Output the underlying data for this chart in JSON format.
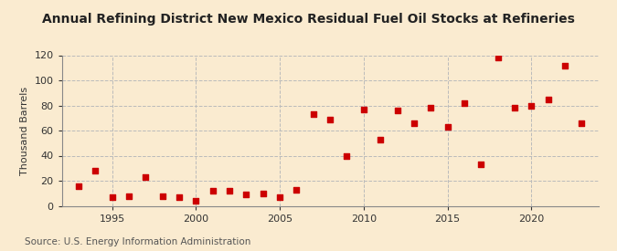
{
  "title": "Annual Refining District New Mexico Residual Fuel Oil Stocks at Refineries",
  "ylabel": "Thousand Barrels",
  "source": "Source: U.S. Energy Information Administration",
  "background_color": "#faebd0",
  "plot_bg_color": "#faebd0",
  "grid_color": "#bbbbbb",
  "marker_color": "#cc0000",
  "years": [
    1993,
    1994,
    1995,
    1996,
    1997,
    1998,
    1999,
    2000,
    2001,
    2002,
    2003,
    2004,
    2005,
    2006,
    2007,
    2008,
    2009,
    2010,
    2011,
    2012,
    2013,
    2014,
    2015,
    2016,
    2017,
    2018,
    2019,
    2020,
    2021,
    2022,
    2023
  ],
  "values": [
    16,
    28,
    7,
    8,
    23,
    8,
    7,
    4,
    12,
    12,
    9,
    10,
    7,
    13,
    73,
    69,
    40,
    77,
    53,
    76,
    66,
    78,
    63,
    82,
    33,
    118,
    78,
    80,
    85,
    112,
    66
  ],
  "xlim": [
    1992,
    2024
  ],
  "ylim": [
    0,
    120
  ],
  "yticks": [
    0,
    20,
    40,
    60,
    80,
    100,
    120
  ],
  "xticks": [
    1995,
    2000,
    2005,
    2010,
    2015,
    2020
  ],
  "title_fontsize": 10,
  "label_fontsize": 8,
  "tick_fontsize": 8,
  "source_fontsize": 7.5
}
